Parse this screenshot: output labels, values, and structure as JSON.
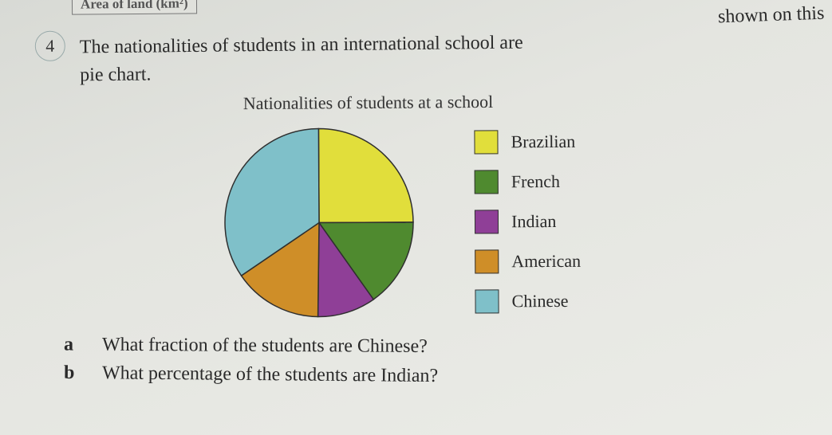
{
  "top_crop_text": "Area of land (km²)",
  "crop_right_text": "shown on this",
  "question": {
    "number": "4",
    "text_line1": "The nationalities of students in an international school are",
    "text_line2": "pie chart."
  },
  "chart": {
    "title": "Nationalities of students at a school",
    "type": "pie",
    "radius": 118,
    "stroke_color": "#2f2f2f",
    "stroke_width": 1.5,
    "background_color": "transparent",
    "slices": [
      {
        "label": "Brazilian",
        "angle": 90,
        "color": "#e1de3b"
      },
      {
        "label": "French",
        "angle": 55,
        "color": "#4f8a2f"
      },
      {
        "label": "Indian",
        "angle": 36,
        "color": "#8f3f97"
      },
      {
        "label": "American",
        "angle": 55,
        "color": "#cf8e28"
      },
      {
        "label": "Chinese",
        "angle": 124,
        "color": "#7fc0c9"
      }
    ],
    "legend": [
      {
        "label": "Brazilian",
        "color": "#e1de3b"
      },
      {
        "label": "French",
        "color": "#4f8a2f"
      },
      {
        "label": "Indian",
        "color": "#8f3f97"
      },
      {
        "label": "American",
        "color": "#cf8e28"
      },
      {
        "label": "Chinese",
        "color": "#7fc0c9"
      }
    ]
  },
  "subquestions": {
    "a": {
      "letter": "a",
      "text": "What fraction of the students are Chinese?"
    },
    "b": {
      "letter": "b",
      "text": "What percentage of the students are Indian?"
    }
  }
}
